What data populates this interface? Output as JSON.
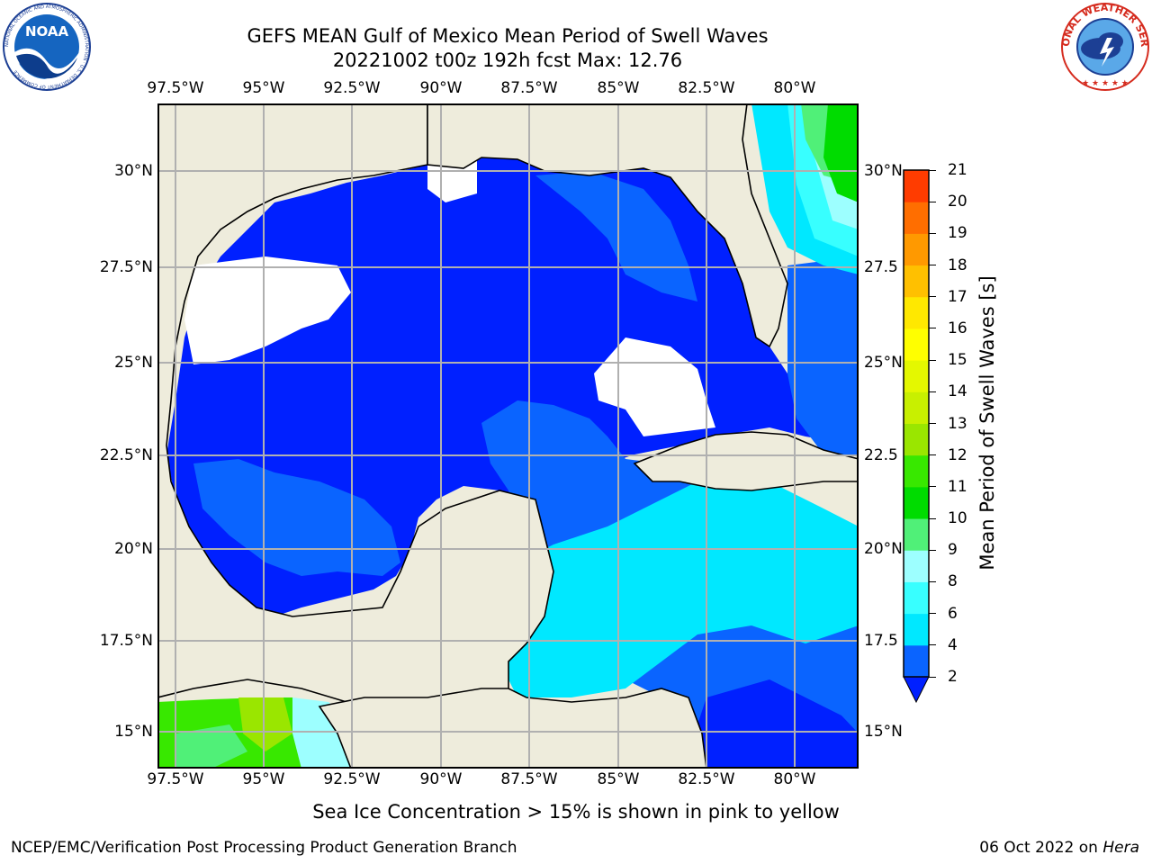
{
  "header": {
    "title_line1": "GEFS MEAN Gulf of Mexico Mean Period of Swell Waves",
    "title_line2": "20221002 t00z 192h fcst   Max: 12.76"
  },
  "logos": {
    "left": {
      "name": "noaa-logo",
      "text": "NOAA",
      "ring_text": "NATIONAL OCEANIC AND ATMOSPHERIC ADMINISTRATION · U.S. DEPARTMENT OF COMMERCE"
    },
    "right": {
      "name": "nws-logo",
      "ring_text": "NATIONAL WEATHER SERVICE"
    }
  },
  "map": {
    "longitudes": [
      "97.5°W",
      "95°W",
      "92.5°W",
      "90°W",
      "87.5°W",
      "85°W",
      "82.5°W",
      "80°W"
    ],
    "latitudes_left": [
      "30°N",
      "27.5°N",
      "25°N",
      "22.5°N",
      "20°N",
      "17.5°N",
      "15°N"
    ],
    "latitudes_right": [
      "30°N",
      "27.5",
      "25°N",
      "22.5",
      "20°N",
      "17.5",
      "15°N"
    ],
    "colors": {
      "land": "#eeecdc",
      "coast": "#000000",
      "grid": "#b0b0b0"
    }
  },
  "colorbar": {
    "title": "Mean Period of Swell Waves [s]",
    "levels": [
      "2",
      "4",
      "6",
      "8",
      "9",
      "10",
      "11",
      "12",
      "13",
      "14",
      "15",
      "16",
      "17",
      "18",
      "19",
      "20",
      "21"
    ],
    "colors": [
      "#0a64ff",
      "#00e8ff",
      "#38ffff",
      "#9dffff",
      "#50f078",
      "#00dc00",
      "#38e800",
      "#9ae600",
      "#c8f000",
      "#e4f800",
      "#ffff00",
      "#ffe800",
      "#ffc000",
      "#ff9900",
      "#ff6e00",
      "#ff3c00"
    ],
    "under_color": "#0020ff"
  },
  "footer": {
    "note": "Sea Ice Concentration > 15% is shown in pink to yellow",
    "credit": "NCEP/EMC/Verification Post Processing Product Generation Branch",
    "date": "06 Oct 2022 on",
    "machine": "Hera"
  }
}
